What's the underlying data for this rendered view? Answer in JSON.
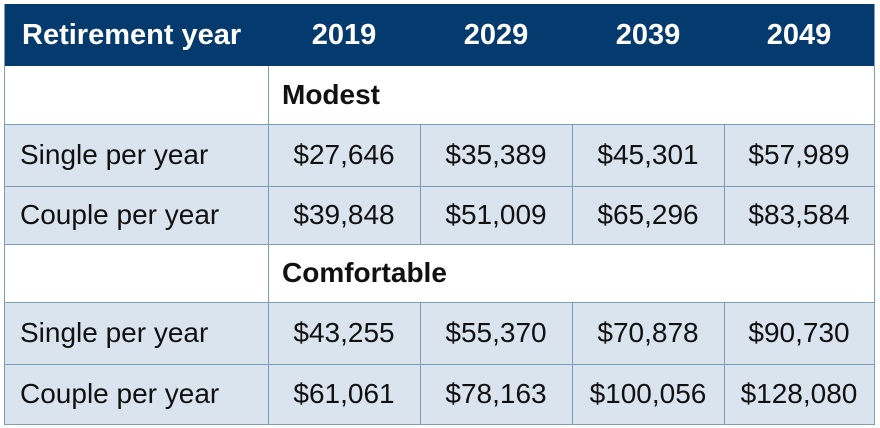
{
  "table": {
    "header": [
      "Retirement year",
      "2019",
      "2029",
      "2039",
      "2049"
    ],
    "groups": [
      {
        "title": "Modest",
        "rows": [
          {
            "label": "Single per year",
            "values": [
              "$27,646",
              "$35,389",
              "$45,301",
              "$57,989"
            ]
          },
          {
            "label": "Couple per year",
            "values": [
              "$39,848",
              "$51,009",
              "$65,296",
              "$83,584"
            ]
          }
        ]
      },
      {
        "title": "Comfortable",
        "rows": [
          {
            "label": "Single per year",
            "values": [
              "$43,255",
              "$55,370",
              "$70,878",
              "$90,730"
            ]
          },
          {
            "label": "Couple per year",
            "values": [
              "$61,061",
              "$78,163",
              "$100,056",
              "$128,080"
            ]
          }
        ]
      }
    ]
  },
  "colors": {
    "header_bg": "#053a6e",
    "row_bg": "#d9e4ee",
    "grid": "#7f9cb9"
  }
}
